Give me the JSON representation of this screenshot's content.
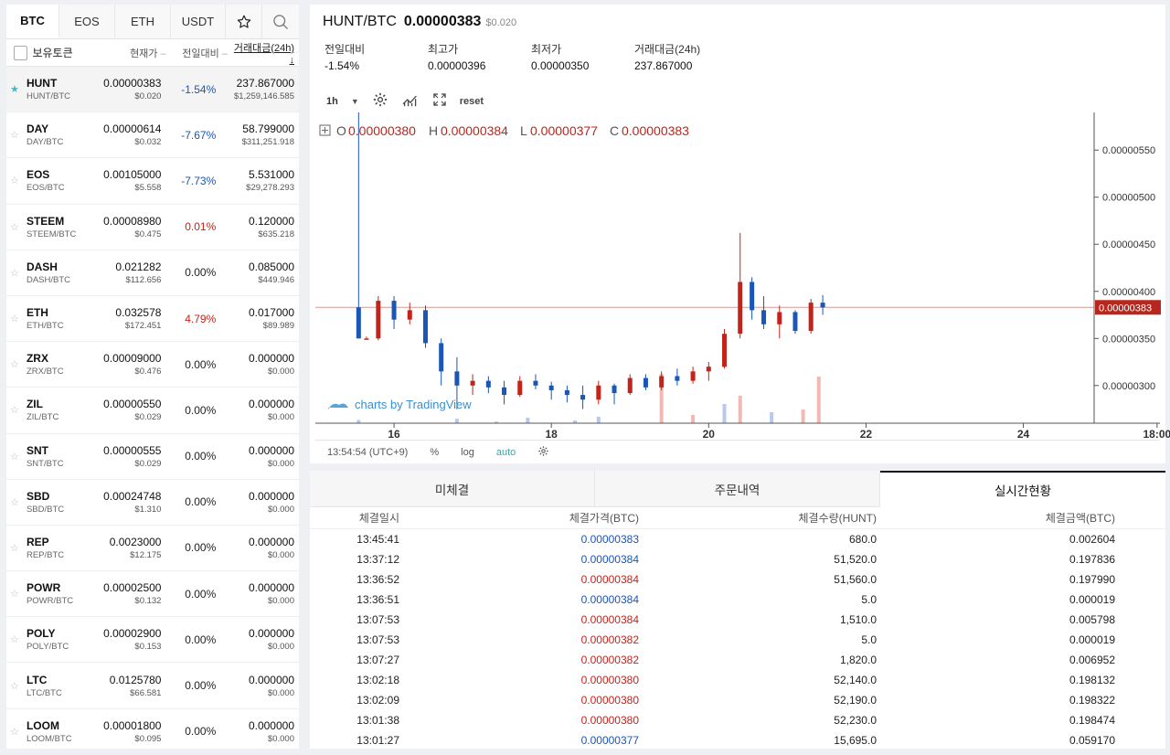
{
  "market_tabs": [
    "BTC",
    "EOS",
    "ETH",
    "USDT"
  ],
  "market_icons": {
    "favorites": "star-icon",
    "search": "search-icon"
  },
  "columns": {
    "holding": "보유토큰",
    "price": "현재가",
    "change": "전일대비",
    "volume": "거래대금(24h)"
  },
  "markets": [
    {
      "symbol": "HUNT",
      "pair": "HUNT/BTC",
      "price": "0.00000383",
      "usd": "$0.020",
      "change": "-1.54%",
      "dir": "down",
      "vol": "237.867000",
      "vol_usd": "$1,259,146.585",
      "fav": true
    },
    {
      "symbol": "DAY",
      "pair": "DAY/BTC",
      "price": "0.00000614",
      "usd": "$0.032",
      "change": "-7.67%",
      "dir": "down",
      "vol": "58.799000",
      "vol_usd": "$311,251.918",
      "fav": false
    },
    {
      "symbol": "EOS",
      "pair": "EOS/BTC",
      "price": "0.00105000",
      "usd": "$5.558",
      "change": "-7.73%",
      "dir": "down",
      "vol": "5.531000",
      "vol_usd": "$29,278.293",
      "fav": false
    },
    {
      "symbol": "STEEM",
      "pair": "STEEM/BTC",
      "price": "0.00008980",
      "usd": "$0.475",
      "change": "0.01%",
      "dir": "up",
      "vol": "0.120000",
      "vol_usd": "$635.218",
      "fav": false
    },
    {
      "symbol": "DASH",
      "pair": "DASH/BTC",
      "price": "0.021282",
      "usd": "$112.656",
      "change": "0.00%",
      "dir": "flat",
      "vol": "0.085000",
      "vol_usd": "$449.946",
      "fav": false
    },
    {
      "symbol": "ETH",
      "pair": "ETH/BTC",
      "price": "0.032578",
      "usd": "$172.451",
      "change": "4.79%",
      "dir": "up",
      "vol": "0.017000",
      "vol_usd": "$89.989",
      "fav": false
    },
    {
      "symbol": "ZRX",
      "pair": "ZRX/BTC",
      "price": "0.00009000",
      "usd": "$0.476",
      "change": "0.00%",
      "dir": "flat",
      "vol": "0.000000",
      "vol_usd": "$0.000",
      "fav": false
    },
    {
      "symbol": "ZIL",
      "pair": "ZIL/BTC",
      "price": "0.00000550",
      "usd": "$0.029",
      "change": "0.00%",
      "dir": "flat",
      "vol": "0.000000",
      "vol_usd": "$0.000",
      "fav": false
    },
    {
      "symbol": "SNT",
      "pair": "SNT/BTC",
      "price": "0.00000555",
      "usd": "$0.029",
      "change": "0.00%",
      "dir": "flat",
      "vol": "0.000000",
      "vol_usd": "$0.000",
      "fav": false
    },
    {
      "symbol": "SBD",
      "pair": "SBD/BTC",
      "price": "0.00024748",
      "usd": "$1.310",
      "change": "0.00%",
      "dir": "flat",
      "vol": "0.000000",
      "vol_usd": "$0.000",
      "fav": false
    },
    {
      "symbol": "REP",
      "pair": "REP/BTC",
      "price": "0.0023000",
      "usd": "$12.175",
      "change": "0.00%",
      "dir": "flat",
      "vol": "0.000000",
      "vol_usd": "$0.000",
      "fav": false
    },
    {
      "symbol": "POWR",
      "pair": "POWR/BTC",
      "price": "0.00002500",
      "usd": "$0.132",
      "change": "0.00%",
      "dir": "flat",
      "vol": "0.000000",
      "vol_usd": "$0.000",
      "fav": false
    },
    {
      "symbol": "POLY",
      "pair": "POLY/BTC",
      "price": "0.00002900",
      "usd": "$0.153",
      "change": "0.00%",
      "dir": "flat",
      "vol": "0.000000",
      "vol_usd": "$0.000",
      "fav": false
    },
    {
      "symbol": "LTC",
      "pair": "LTC/BTC",
      "price": "0.0125780",
      "usd": "$66.581",
      "change": "0.00%",
      "dir": "flat",
      "vol": "0.000000",
      "vol_usd": "$0.000",
      "fav": false
    },
    {
      "symbol": "LOOM",
      "pair": "LOOM/BTC",
      "price": "0.00001800",
      "usd": "$0.095",
      "change": "0.00%",
      "dir": "flat",
      "vol": "0.000000",
      "vol_usd": "$0.000",
      "fav": false
    }
  ],
  "header": {
    "pair": "HUNT/BTC",
    "price": "0.00000383",
    "usd": "$0.020",
    "stats": [
      {
        "label": "전일대비",
        "value": "-1.54%"
      },
      {
        "label": "최고가",
        "value": "0.00000396"
      },
      {
        "label": "최저가",
        "value": "0.00000350"
      },
      {
        "label": "거래대금(24h)",
        "value": "237.867000"
      }
    ]
  },
  "chart_toolbar": {
    "interval": "1h",
    "reset": "reset"
  },
  "chart_ohlc": {
    "o_label": "O",
    "o": "0.00000380",
    "h_label": "H",
    "h": "0.00000384",
    "l_label": "L",
    "l": "0.00000377",
    "c_label": "C",
    "c": "0.00000383"
  },
  "chart_brand": "charts by TradingView",
  "chart_footer": {
    "time": "13:54:54 (UTC+9)",
    "pct": "%",
    "log": "log",
    "auto": "auto"
  },
  "colors": {
    "up": "#c4231a",
    "down": "#1a56b5",
    "accent": "#4fb3bd",
    "last_price_bg": "#b8271d"
  },
  "chart_data": {
    "type": "candlestick",
    "x_ticks": [
      "16",
      "18",
      "20",
      "22",
      "24",
      "18:00"
    ],
    "y_ticks": [
      "0.00000550",
      "0.00000500",
      "0.00000450",
      "0.00000400",
      "0.00000350",
      "0.00000300"
    ],
    "ylim": [
      2.6e-06,
      5.9e-06
    ],
    "last_price": "0.00000383",
    "x_range_days": [
      15.0,
      24.9
    ],
    "candles": [
      {
        "t": 15.55,
        "o": 3.83e-06,
        "h": 5.9e-06,
        "l": 3.5e-06,
        "c": 3.5e-06
      },
      {
        "t": 15.65,
        "o": 3.5e-06,
        "h": 3.52e-06,
        "l": 3.5e-06,
        "c": 3.5e-06
      },
      {
        "t": 15.8,
        "o": 3.5e-06,
        "h": 3.95e-06,
        "l": 3.48e-06,
        "c": 3.9e-06
      },
      {
        "t": 16.0,
        "o": 3.9e-06,
        "h": 3.95e-06,
        "l": 3.6e-06,
        "c": 3.7e-06
      },
      {
        "t": 16.2,
        "o": 3.7e-06,
        "h": 3.88e-06,
        "l": 3.65e-06,
        "c": 3.8e-06
      },
      {
        "t": 16.4,
        "o": 3.8e-06,
        "h": 3.85e-06,
        "l": 3.4e-06,
        "c": 3.45e-06
      },
      {
        "t": 16.6,
        "o": 3.45e-06,
        "h": 3.5e-06,
        "l": 3e-06,
        "c": 3.15e-06
      },
      {
        "t": 16.8,
        "o": 3.15e-06,
        "h": 3.3e-06,
        "l": 2.75e-06,
        "c": 3e-06
      },
      {
        "t": 17.0,
        "o": 3e-06,
        "h": 3.12e-06,
        "l": 2.9e-06,
        "c": 3.05e-06
      },
      {
        "t": 17.2,
        "o": 3.05e-06,
        "h": 3.1e-06,
        "l": 2.92e-06,
        "c": 2.98e-06
      },
      {
        "t": 17.4,
        "o": 2.98e-06,
        "h": 3.05e-06,
        "l": 2.8e-06,
        "c": 2.9e-06
      },
      {
        "t": 17.6,
        "o": 2.9e-06,
        "h": 3.1e-06,
        "l": 2.88e-06,
        "c": 3.05e-06
      },
      {
        "t": 17.8,
        "o": 3.05e-06,
        "h": 3.12e-06,
        "l": 2.96e-06,
        "c": 3e-06
      },
      {
        "t": 18.0,
        "o": 3e-06,
        "h": 3.04e-06,
        "l": 2.85e-06,
        "c": 2.95e-06
      },
      {
        "t": 18.2,
        "o": 2.95e-06,
        "h": 3e-06,
        "l": 2.82e-06,
        "c": 2.9e-06
      },
      {
        "t": 18.4,
        "o": 2.9e-06,
        "h": 3e-06,
        "l": 2.75e-06,
        "c": 2.85e-06
      },
      {
        "t": 18.6,
        "o": 2.85e-06,
        "h": 3.05e-06,
        "l": 2.8e-06,
        "c": 3e-06
      },
      {
        "t": 18.8,
        "o": 3e-06,
        "h": 3.02e-06,
        "l": 2.8e-06,
        "c": 2.92e-06
      },
      {
        "t": 19.0,
        "o": 2.92e-06,
        "h": 3.12e-06,
        "l": 2.9e-06,
        "c": 3.08e-06
      },
      {
        "t": 19.2,
        "o": 3.08e-06,
        "h": 3.12e-06,
        "l": 2.95e-06,
        "c": 2.98e-06
      },
      {
        "t": 19.4,
        "o": 2.98e-06,
        "h": 3.15e-06,
        "l": 2.95e-06,
        "c": 3.1e-06
      },
      {
        "t": 19.6,
        "o": 3.1e-06,
        "h": 3.18e-06,
        "l": 3e-06,
        "c": 3.05e-06
      },
      {
        "t": 19.8,
        "o": 3.05e-06,
        "h": 3.2e-06,
        "l": 3.02e-06,
        "c": 3.15e-06
      },
      {
        "t": 20.0,
        "o": 3.15e-06,
        "h": 3.25e-06,
        "l": 3.05e-06,
        "c": 3.2e-06
      },
      {
        "t": 20.2,
        "o": 3.2e-06,
        "h": 3.6e-06,
        "l": 3.18e-06,
        "c": 3.55e-06
      },
      {
        "t": 20.4,
        "o": 3.55e-06,
        "h": 4.62e-06,
        "l": 3.5e-06,
        "c": 4.1e-06
      },
      {
        "t": 20.55,
        "o": 4.1e-06,
        "h": 4.15e-06,
        "l": 3.7e-06,
        "c": 3.8e-06
      },
      {
        "t": 20.7,
        "o": 3.8e-06,
        "h": 3.95e-06,
        "l": 3.6e-06,
        "c": 3.65e-06
      },
      {
        "t": 20.9,
        "o": 3.65e-06,
        "h": 3.85e-06,
        "l": 3.5e-06,
        "c": 3.78e-06
      },
      {
        "t": 21.1,
        "o": 3.78e-06,
        "h": 3.8e-06,
        "l": 3.55e-06,
        "c": 3.58e-06
      },
      {
        "t": 21.3,
        "o": 3.58e-06,
        "h": 3.92e-06,
        "l": 3.55e-06,
        "c": 3.88e-06
      },
      {
        "t": 21.45,
        "o": 3.88e-06,
        "h": 3.96e-06,
        "l": 3.75e-06,
        "c": 3.83e-06
      }
    ],
    "volumes": [
      {
        "t": 15.55,
        "v": 0.06,
        "dir": "down"
      },
      {
        "t": 16.8,
        "v": 0.08,
        "dir": "down"
      },
      {
        "t": 17.3,
        "v": 0.03,
        "dir": "up"
      },
      {
        "t": 17.7,
        "v": 0.1,
        "dir": "down"
      },
      {
        "t": 18.3,
        "v": 0.05,
        "dir": "down"
      },
      {
        "t": 18.6,
        "v": 0.12,
        "dir": "down"
      },
      {
        "t": 19.4,
        "v": 0.9,
        "dir": "up"
      },
      {
        "t": 19.8,
        "v": 0.15,
        "dir": "up"
      },
      {
        "t": 20.2,
        "v": 0.35,
        "dir": "down"
      },
      {
        "t": 20.4,
        "v": 0.5,
        "dir": "up"
      },
      {
        "t": 20.8,
        "v": 0.2,
        "dir": "down"
      },
      {
        "t": 21.2,
        "v": 0.25,
        "dir": "up"
      },
      {
        "t": 21.4,
        "v": 0.85,
        "dir": "up"
      }
    ]
  },
  "bottom_tabs": [
    "미체결",
    "주문내역",
    "실시간현황"
  ],
  "trades_header": [
    "체결일시",
    "체결가격(BTC)",
    "체결수량(HUNT)",
    "체결금액(BTC)"
  ],
  "trades": [
    {
      "time": "13:45:41",
      "price": "0.00000383",
      "dir": "down",
      "qty": "680.0",
      "amt": "0.002604"
    },
    {
      "time": "13:37:12",
      "price": "0.00000384",
      "dir": "down",
      "qty": "51,520.0",
      "amt": "0.197836"
    },
    {
      "time": "13:36:52",
      "price": "0.00000384",
      "dir": "up",
      "qty": "51,560.0",
      "amt": "0.197990"
    },
    {
      "time": "13:36:51",
      "price": "0.00000384",
      "dir": "down",
      "qty": "5.0",
      "amt": "0.000019"
    },
    {
      "time": "13:07:53",
      "price": "0.00000384",
      "dir": "up",
      "qty": "1,510.0",
      "amt": "0.005798"
    },
    {
      "time": "13:07:53",
      "price": "0.00000382",
      "dir": "up",
      "qty": "5.0",
      "amt": "0.000019"
    },
    {
      "time": "13:07:27",
      "price": "0.00000382",
      "dir": "up",
      "qty": "1,820.0",
      "amt": "0.006952"
    },
    {
      "time": "13:02:18",
      "price": "0.00000380",
      "dir": "up",
      "qty": "52,140.0",
      "amt": "0.198132"
    },
    {
      "time": "13:02:09",
      "price": "0.00000380",
      "dir": "up",
      "qty": "52,190.0",
      "amt": "0.198322"
    },
    {
      "time": "13:01:38",
      "price": "0.00000380",
      "dir": "up",
      "qty": "52,230.0",
      "amt": "0.198474"
    },
    {
      "time": "13:01:27",
      "price": "0.00000377",
      "dir": "down",
      "qty": "15,695.0",
      "amt": "0.059170"
    }
  ]
}
